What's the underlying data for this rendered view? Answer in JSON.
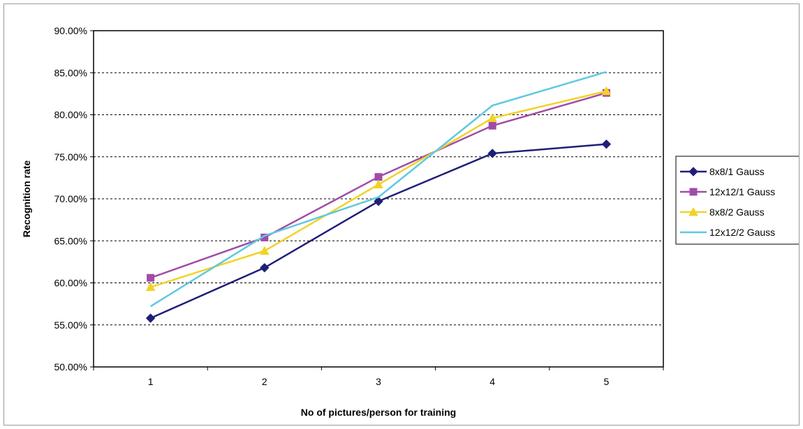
{
  "chart_data": {
    "type": "line",
    "title": "",
    "xlabel": "No of pictures/person for training",
    "ylabel": "Recognition rate",
    "x": [
      1,
      2,
      3,
      4,
      5
    ],
    "x_tick_labels": [
      "1",
      "2",
      "3",
      "4",
      "5"
    ],
    "ylim": [
      0.5,
      0.9
    ],
    "y_ticks": [
      0.5,
      0.55,
      0.6,
      0.65,
      0.7,
      0.75,
      0.8,
      0.85,
      0.9
    ],
    "y_tick_labels": [
      "50.00%",
      "55.00%",
      "60.00%",
      "65.00%",
      "70.00%",
      "75.00%",
      "80.00%",
      "85.00%",
      "90.00%"
    ],
    "grid": "horizontal dashed",
    "legend_position": "right",
    "series": [
      {
        "name": "8x8/1 Gauss",
        "values": [
          0.558,
          0.618,
          0.697,
          0.754,
          0.765
        ],
        "color": "#1f1f78",
        "marker": "diamond"
      },
      {
        "name": "12x12/1 Gauss",
        "values": [
          0.606,
          0.654,
          0.726,
          0.787,
          0.826
        ],
        "color": "#a04ca8",
        "marker": "square"
      },
      {
        "name": "8x8/2 Gauss",
        "values": [
          0.595,
          0.638,
          0.717,
          0.796,
          0.828
        ],
        "color": "#f2d224",
        "marker": "triangle"
      },
      {
        "name": "12x12/2 Gauss",
        "values": [
          0.572,
          0.656,
          0.702,
          0.811,
          0.851
        ],
        "color": "#5fc8e0",
        "marker": "none"
      }
    ]
  }
}
